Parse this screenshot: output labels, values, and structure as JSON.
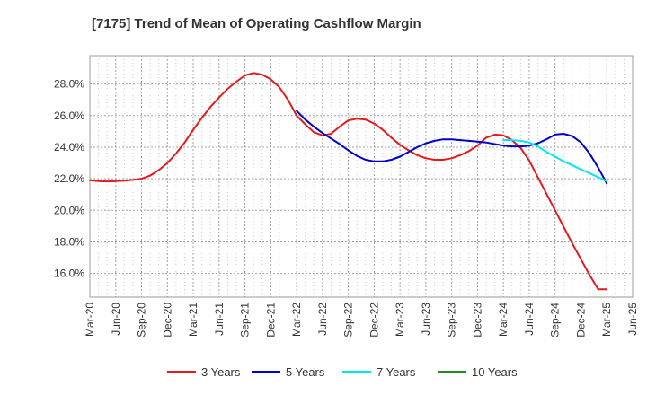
{
  "chart_data": {
    "type": "line",
    "title": "[7175]  Trend of Mean of Operating Cashflow Margin",
    "xlabel": "",
    "ylabel": "",
    "ylim": [
      14.5,
      29.8
    ],
    "y_ticks": [
      "28.0%",
      "26.0%",
      "24.0%",
      "22.0%",
      "20.0%",
      "18.0%",
      "16.0%"
    ],
    "y_tick_values": [
      28,
      26,
      24,
      22,
      20,
      18,
      16
    ],
    "x_ticks": [
      "Mar-20",
      "Jun-20",
      "Sep-20",
      "Dec-20",
      "Mar-21",
      "Jun-21",
      "Sep-21",
      "Dec-21",
      "Mar-22",
      "Jun-22",
      "Sep-22",
      "Dec-22",
      "Mar-23",
      "Jun-23",
      "Sep-23",
      "Dec-23",
      "Mar-24",
      "Jun-24",
      "Sep-24",
      "Dec-24",
      "Mar-25",
      "Jun-25"
    ],
    "grid": true,
    "legend_position": "bottom",
    "series": [
      {
        "name": "3 Years",
        "color": "#e41a1c",
        "x": [
          "Mar-20",
          "Apr-20",
          "May-20",
          "Jun-20",
          "Jul-20",
          "Aug-20",
          "Sep-20",
          "Oct-20",
          "Nov-20",
          "Dec-20",
          "Jan-21",
          "Feb-21",
          "Mar-21",
          "Apr-21",
          "May-21",
          "Jun-21",
          "Jul-21",
          "Aug-21",
          "Sep-21",
          "Oct-21",
          "Nov-21",
          "Dec-21",
          "Jan-22",
          "Feb-22",
          "Mar-22",
          "Apr-22",
          "May-22",
          "Jun-22",
          "Jul-22",
          "Aug-22",
          "Sep-22",
          "Oct-22",
          "Nov-22",
          "Dec-22",
          "Jan-23",
          "Feb-23",
          "Mar-23",
          "Apr-23",
          "May-23",
          "Jun-23",
          "Jul-23",
          "Aug-23",
          "Sep-23",
          "Oct-23",
          "Nov-23",
          "Dec-23",
          "Jan-24",
          "Feb-24",
          "Mar-24",
          "Apr-24",
          "May-24",
          "Jun-24",
          "Jul-24",
          "Aug-24",
          "Sep-24",
          "Oct-24",
          "Nov-24",
          "Dec-24",
          "Jan-25",
          "Feb-25",
          "Mar-25"
        ],
        "values": [
          21.9,
          21.85,
          21.83,
          21.85,
          21.88,
          21.93,
          22.0,
          22.2,
          22.55,
          23.0,
          23.6,
          24.3,
          25.1,
          25.85,
          26.55,
          27.15,
          27.7,
          28.15,
          28.55,
          28.7,
          28.6,
          28.3,
          27.8,
          27.0,
          26.0,
          25.45,
          24.95,
          24.75,
          24.85,
          25.3,
          25.7,
          25.8,
          25.75,
          25.5,
          25.1,
          24.6,
          24.15,
          23.8,
          23.5,
          23.3,
          23.2,
          23.2,
          23.3,
          23.5,
          23.75,
          24.1,
          24.6,
          24.8,
          24.75,
          24.45,
          23.95,
          23.15,
          22.1,
          21.05,
          20.0,
          18.95,
          17.9,
          16.9,
          15.9,
          15.0,
          15.0
        ]
      },
      {
        "name": "5 Years",
        "color": "#0000cc",
        "x": [
          "Mar-22",
          "Apr-22",
          "May-22",
          "Jun-22",
          "Jul-22",
          "Aug-22",
          "Sep-22",
          "Oct-22",
          "Nov-22",
          "Dec-22",
          "Jan-23",
          "Feb-23",
          "Mar-23",
          "Apr-23",
          "May-23",
          "Jun-23",
          "Jul-23",
          "Aug-23",
          "Sep-23",
          "Oct-23",
          "Nov-23",
          "Dec-23",
          "Jan-24",
          "Feb-24",
          "Mar-24",
          "Apr-24",
          "May-24",
          "Jun-24",
          "Jul-24",
          "Aug-24",
          "Sep-24",
          "Oct-24",
          "Nov-24",
          "Dec-24",
          "Jan-25",
          "Feb-25",
          "Mar-25"
        ],
        "values": [
          26.3,
          25.75,
          25.3,
          24.9,
          24.55,
          24.2,
          23.8,
          23.45,
          23.2,
          23.1,
          23.1,
          23.2,
          23.4,
          23.7,
          24.0,
          24.25,
          24.4,
          24.5,
          24.5,
          24.45,
          24.4,
          24.35,
          24.3,
          24.2,
          24.1,
          24.05,
          24.05,
          24.1,
          24.25,
          24.5,
          24.8,
          24.85,
          24.7,
          24.3,
          23.6,
          22.7,
          21.7
        ]
      },
      {
        "name": "7 Years",
        "color": "#00e5ee",
        "x": [
          "Mar-24",
          "Apr-24",
          "May-24",
          "Jun-24",
          "Jul-24",
          "Aug-24",
          "Sep-24",
          "Oct-24",
          "Nov-24",
          "Dec-24",
          "Jan-25",
          "Feb-25",
          "Mar-25"
        ],
        "values": [
          24.45,
          24.45,
          24.4,
          24.3,
          24.05,
          23.7,
          23.4,
          23.1,
          22.85,
          22.6,
          22.35,
          22.1,
          21.85
        ]
      },
      {
        "name": "10 Years",
        "color": "#228b22",
        "x": [],
        "values": []
      }
    ]
  }
}
